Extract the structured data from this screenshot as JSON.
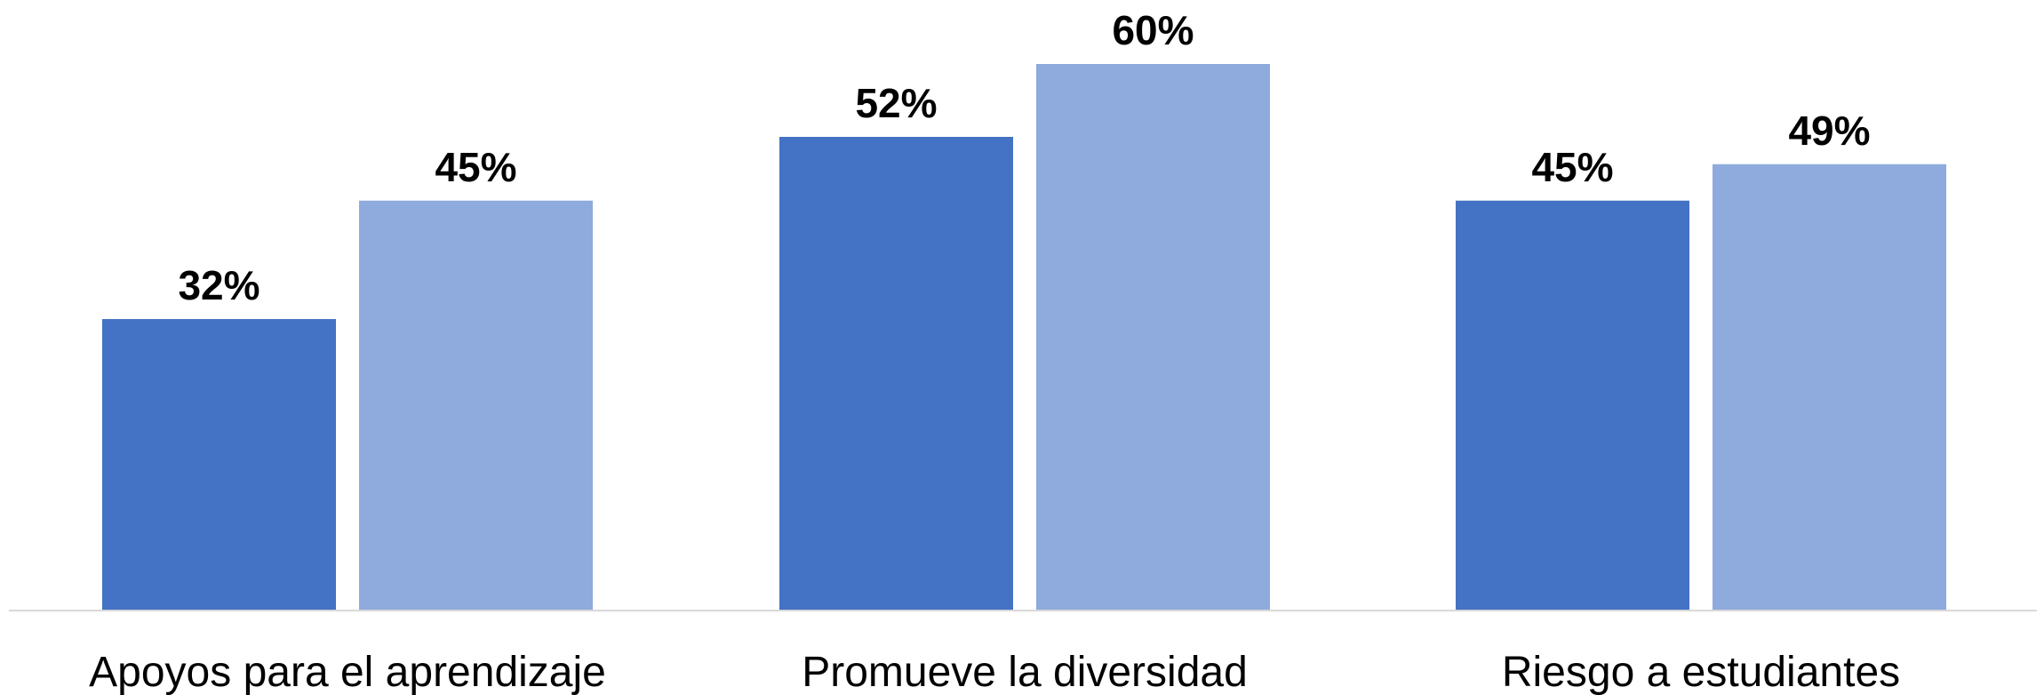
{
  "chart_data": {
    "type": "bar",
    "categories": [
      "Apoyos para el aprendizaje",
      "Promueve la diversidad",
      "Riesgo a estudiantes"
    ],
    "series": [
      {
        "values": [
          32,
          52,
          45
        ],
        "labels": [
          "32%",
          "52%",
          "45%"
        ],
        "color": "#4472c4"
      },
      {
        "values": [
          45,
          60,
          49
        ],
        "labels": [
          "45%",
          "60%",
          "49%"
        ],
        "color": "#8faadc"
      }
    ],
    "ylim": [
      0,
      60
    ],
    "grid": false,
    "axis_color": "#d9d9d9"
  }
}
